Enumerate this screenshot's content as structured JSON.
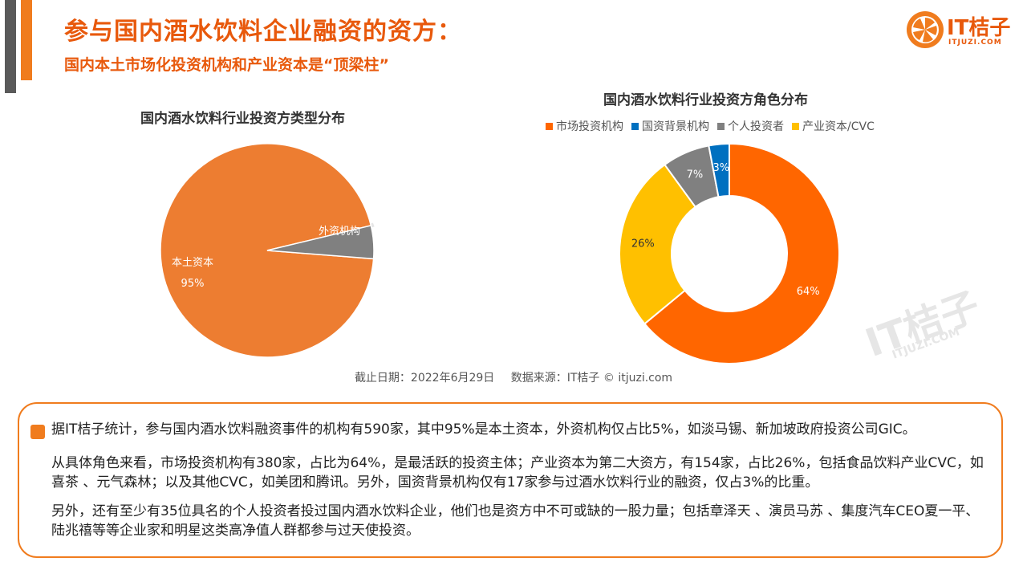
{
  "header": {
    "title": "参与国内酒水饮料企业融资的资方：",
    "subtitle": "国内本土市场化投资机构和产业资本是“顶梁柱”",
    "logo_text": "IT桔子",
    "logo_sub": "ITJUZI.COM"
  },
  "watermark": {
    "text": "IT桔子",
    "sub": "ITJUZI.COM"
  },
  "colors": {
    "accent": "#e8590c",
    "pie_domestic": "#ed7d31",
    "pie_foreign": "#808080",
    "donut_market": "#ff6600",
    "donut_state": "#0070c0",
    "donut_personal": "#808080",
    "donut_industry": "#ffc000"
  },
  "chart_data": [
    {
      "type": "pie",
      "title": "国内酒水饮料行业投资方类型分布",
      "categories": [
        "本土资本",
        "外资机构"
      ],
      "values": [
        95,
        5
      ],
      "data_labels": {
        "domestic_name": "本土资本",
        "domestic_value": "95%",
        "foreign_name": "外资机构"
      }
    },
    {
      "type": "pie",
      "variant": "donut",
      "title": "国内酒水饮料行业投资方角色分布",
      "categories": [
        "市场投资机构",
        "国资背景机构",
        "个人投资者",
        "产业资本/CVC"
      ],
      "values": [
        64,
        3,
        7,
        26
      ],
      "value_labels": [
        "64%",
        "3%",
        "7%",
        "26%"
      ],
      "legend_position": "top"
    }
  ],
  "source": {
    "date": "截止日期：2022年6月29日",
    "origin": "数据来源：IT桔子 © itjuzi.com"
  },
  "summary": {
    "p1": "据IT桔子统计，参与国内酒水饮料融资事件的机构有590家，其中95%是本土资本，外资机构仅占比5%，如淡马锡、新加坡政府投资公司GIC。",
    "p2": "从具体角色来看，市场投资机构有380家，占比为64%，是最活跃的投资主体；产业资本为第二大资方，有154家，占比26%，包括食品饮料产业CVC，如喜茶 、元气森林；以及其他CVC，如美团和腾讯。另外，国资背景机构仅有17家参与过酒水饮料行业的融资，仅占3%的比重。",
    "p3": "另外，还有至少有35位具名的个人投资者投过国内酒水饮料企业，他们也是资方中不可或缺的一股力量；包括章泽天 、演员马苏 、集度汽车CEO夏一平、陆兆禧等等企业家和明星这类高净值人群都参与过天使投资。"
  }
}
